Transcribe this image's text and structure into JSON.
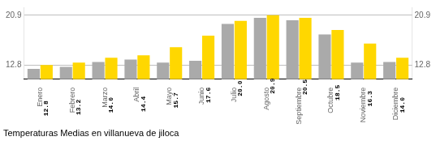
{
  "chart_data": {
    "type": "bar",
    "title": "Temperaturas Medias en villanueva de jiloca",
    "categories": [
      "Enero",
      "Febrero",
      "Marzo",
      "Abril",
      "Mayo",
      "Junio",
      "Julio",
      "Agosto",
      "Septiembre",
      "Octubre",
      "Noviembre",
      "Diciembre"
    ],
    "series": [
      {
        "color": "#AAAAAA",
        "values": [
          12.2,
          12.5,
          13.3,
          13.7,
          13.2,
          13.5,
          19.5,
          20.5,
          20.1,
          17.8,
          13.2,
          13.3
        ]
      },
      {
        "color": "#FFD700",
        "values": [
          12.8,
          13.2,
          14.0,
          14.4,
          15.7,
          17.6,
          20.0,
          20.9,
          20.5,
          18.5,
          16.3,
          14.0
        ],
        "data_labels": true,
        "value_labels": [
          "12.8",
          "13.2",
          "14.0",
          "14.4",
          "15.7",
          "17.6",
          "20.0",
          "20.9",
          "20.5",
          "18.5",
          "16.3",
          "14.0"
        ]
      }
    ],
    "ylim": [
      10.5,
      22.2
    ],
    "yticks": [
      12.8,
      20.9
    ],
    "y2lim": [
      10.5,
      22.2
    ],
    "y2ticks": [
      12.8,
      20.9
    ],
    "grid": true
  }
}
